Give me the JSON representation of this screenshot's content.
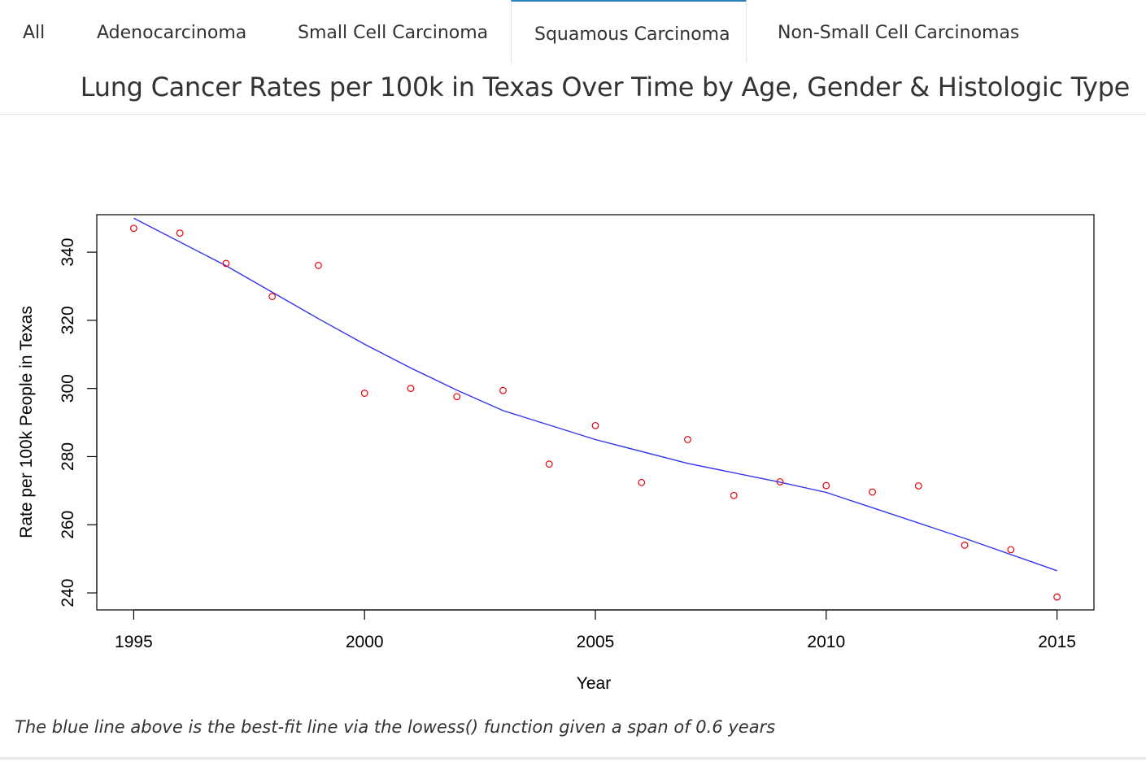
{
  "tabs": [
    {
      "label": "All",
      "active": false
    },
    {
      "label": "Adenocarcinoma",
      "active": false
    },
    {
      "label": "Small Cell Carcinoma",
      "active": false
    },
    {
      "label": "Squamous Carcinoma",
      "active": true
    },
    {
      "label": "Non-Small Cell Carcinomas",
      "active": false
    }
  ],
  "page_title": "Lung Cancer Rates per 100k in Texas Over Time by Age, Gender & Histologic Type",
  "caption": "The blue line above is the best-fit line via the lowess() function given a span of 0.6 years",
  "colors": {
    "points": "#e8000b",
    "fit_line": "#3333ee",
    "active_tab_accent": "#2c7fb8"
  },
  "chart_data": {
    "type": "scatter",
    "title": "",
    "xlabel": "Year",
    "ylabel": "Rate per 100k People in Texas",
    "xlim": [
      1994.2,
      2015.8
    ],
    "ylim": [
      235,
      351
    ],
    "xticks": [
      1995,
      2000,
      2005,
      2010,
      2015
    ],
    "yticks": [
      240,
      260,
      280,
      300,
      320,
      340
    ],
    "grid": false,
    "points": {
      "x": [
        1995,
        1996,
        1997,
        1998,
        1999,
        2000,
        2001,
        2002,
        2003,
        2004,
        2005,
        2006,
        2007,
        2008,
        2009,
        2010,
        2011,
        2012,
        2013,
        2014,
        2015
      ],
      "y": [
        347,
        345.6,
        336.7,
        327,
        336.1,
        298.6,
        300,
        297.6,
        299.4,
        277.8,
        289.1,
        272.4,
        285,
        268.6,
        272.6,
        271.5,
        269.6,
        271.4,
        254,
        252.7,
        238.8
      ]
    },
    "fit_line": {
      "x": [
        1995,
        1997,
        1999,
        2000,
        2001,
        2002,
        2003,
        2005,
        2007,
        2009,
        2010,
        2011,
        2013,
        2015
      ],
      "y": [
        350,
        336,
        320.5,
        313,
        306,
        299.5,
        293.5,
        285,
        278,
        272.5,
        269.5,
        265,
        256,
        246.5
      ]
    }
  }
}
